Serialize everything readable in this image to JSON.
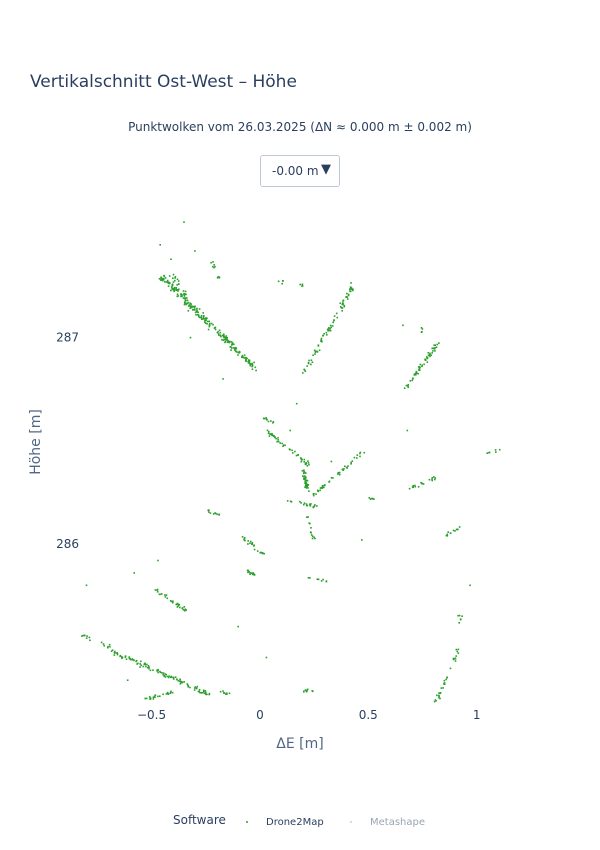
{
  "header": {
    "title": "Vertikalschnitt Ost-West – Höhe",
    "subtitle": "Punktwolken vom 26.03.2025 (ΔN ≈ 0.000 m ± 0.002 m)"
  },
  "dropdown": {
    "selected": "-0.00 m",
    "caret": "▼"
  },
  "legend": {
    "title": "Software",
    "items": [
      {
        "label": "Drone2Map",
        "color": "#2ca02c",
        "active": true
      },
      {
        "label": "Metashape",
        "color": "#9aa5b1",
        "active": false
      }
    ]
  },
  "chart_data": {
    "type": "scatter",
    "xlabel": "ΔE [m]",
    "ylabel": "Höhe [m]",
    "xlim": [
      -0.83,
      1.2
    ],
    "ylim": [
      285.22,
      287.57
    ],
    "x_ticks": [
      {
        "v": -0.5,
        "label": "−0.5"
      },
      {
        "v": 0,
        "label": "0"
      },
      {
        "v": 0.5,
        "label": "0.5"
      },
      {
        "v": 1,
        "label": "1"
      }
    ],
    "y_ticks": [
      {
        "v": 286,
        "label": "286"
      },
      {
        "v": 287,
        "label": "287"
      }
    ],
    "grid": false,
    "series": [
      {
        "name": "Drone2Map",
        "color": "#2ca02c",
        "segments": [
          {
            "from": [
              -0.45,
              287.29
            ],
            "to": [
              -0.02,
              286.85
            ],
            "n": 220,
            "spread": 0.022
          },
          {
            "from": [
              -0.42,
              287.32
            ],
            "to": [
              -0.31,
              287.12
            ],
            "n": 40,
            "spread": 0.04
          },
          {
            "from": [
              -0.22,
              287.37
            ],
            "to": [
              -0.19,
              287.28
            ],
            "n": 10,
            "spread": 0.02
          },
          {
            "from": [
              0.21,
              287.25
            ],
            "to": [
              0.07,
              287.28
            ],
            "n": 8,
            "spread": 0.02
          },
          {
            "from": [
              0.2,
              286.83
            ],
            "to": [
              0.43,
              287.25
            ],
            "n": 80,
            "spread": 0.018
          },
          {
            "from": [
              0.66,
              286.74
            ],
            "to": [
              0.82,
              286.97
            ],
            "n": 55,
            "spread": 0.015
          },
          {
            "from": [
              0.74,
              287.0
            ],
            "to": [
              0.75,
              287.05
            ],
            "n": 4,
            "spread": 0.01
          },
          {
            "from": [
              0.0,
              286.62
            ],
            "to": [
              0.06,
              286.59
            ],
            "n": 10,
            "spread": 0.01
          },
          {
            "from": [
              0.03,
              286.55
            ],
            "to": [
              0.23,
              286.38
            ],
            "n": 50,
            "spread": 0.015
          },
          {
            "from": [
              0.2,
              286.36
            ],
            "to": [
              0.22,
              286.26
            ],
            "n": 40,
            "spread": 0.012
          },
          {
            "from": [
              0.24,
              286.23
            ],
            "to": [
              0.48,
              286.45
            ],
            "n": 45,
            "spread": 0.015
          },
          {
            "from": [
              0.13,
              286.21
            ],
            "to": [
              0.27,
              286.18
            ],
            "n": 20,
            "spread": 0.01
          },
          {
            "from": [
              0.22,
              286.13
            ],
            "to": [
              0.25,
              286.03
            ],
            "n": 12,
            "spread": 0.01
          },
          {
            "from": [
              0.69,
              286.27
            ],
            "to": [
              0.81,
              286.32
            ],
            "n": 18,
            "spread": 0.012
          },
          {
            "from": [
              0.51,
              286.22
            ],
            "to": [
              0.53,
              286.22
            ],
            "n": 6,
            "spread": 0.01
          },
          {
            "from": [
              1.02,
              286.43
            ],
            "to": [
              1.11,
              286.46
            ],
            "n": 6,
            "spread": 0.01
          },
          {
            "from": [
              -0.24,
              286.16
            ],
            "to": [
              -0.16,
              286.13
            ],
            "n": 10,
            "spread": 0.01
          },
          {
            "from": [
              -0.08,
              286.03
            ],
            "to": [
              0.02,
              285.95
            ],
            "n": 25,
            "spread": 0.015
          },
          {
            "from": [
              -0.06,
              285.87
            ],
            "to": [
              -0.02,
              285.85
            ],
            "n": 14,
            "spread": 0.01
          },
          {
            "from": [
              0.85,
              286.04
            ],
            "to": [
              0.93,
              286.08
            ],
            "n": 12,
            "spread": 0.01
          },
          {
            "from": [
              0.22,
              285.84
            ],
            "to": [
              0.31,
              285.82
            ],
            "n": 8,
            "spread": 0.008
          },
          {
            "from": [
              -0.49,
              285.78
            ],
            "to": [
              -0.34,
              285.68
            ],
            "n": 30,
            "spread": 0.015
          },
          {
            "from": [
              -0.68,
              285.48
            ],
            "to": [
              -0.23,
              285.27
            ],
            "n": 120,
            "spread": 0.018
          },
          {
            "from": [
              -0.82,
              285.56
            ],
            "to": [
              -0.68,
              285.5
            ],
            "n": 15,
            "spread": 0.015
          },
          {
            "from": [
              -0.53,
              285.25
            ],
            "to": [
              -0.4,
              285.28
            ],
            "n": 25,
            "spread": 0.012
          },
          {
            "from": [
              -0.19,
              285.29
            ],
            "to": [
              -0.14,
              285.27
            ],
            "n": 8,
            "spread": 0.01
          },
          {
            "from": [
              0.78,
              285.15
            ],
            "to": [
              0.92,
              285.5
            ],
            "n": 40,
            "spread": 0.015
          },
          {
            "from": [
              0.9,
              285.68
            ],
            "to": [
              0.96,
              285.6
            ],
            "n": 6,
            "spread": 0.02
          },
          {
            "from": [
              0.2,
              285.29
            ],
            "to": [
              0.25,
              285.29
            ],
            "n": 10,
            "spread": 0.01
          }
        ],
        "scatter": [
          [
            -0.35,
            287.56
          ],
          [
            -0.46,
            287.45
          ],
          [
            -0.41,
            287.38
          ],
          [
            -0.3,
            287.42
          ],
          [
            -0.8,
            285.8
          ],
          [
            -0.58,
            285.86
          ],
          [
            -0.47,
            285.92
          ],
          [
            0.66,
            287.06
          ],
          [
            1.08,
            285.2
          ],
          [
            0.33,
            286.4
          ],
          [
            0.17,
            286.68
          ],
          [
            0.14,
            286.55
          ],
          [
            0.47,
            286.02
          ],
          [
            -0.1,
            285.6
          ],
          [
            0.97,
            285.8
          ],
          [
            -0.32,
            287.0
          ],
          [
            -0.17,
            286.8
          ],
          [
            -0.61,
            285.34
          ],
          [
            0.68,
            286.55
          ],
          [
            0.03,
            285.45
          ]
        ]
      }
    ]
  }
}
